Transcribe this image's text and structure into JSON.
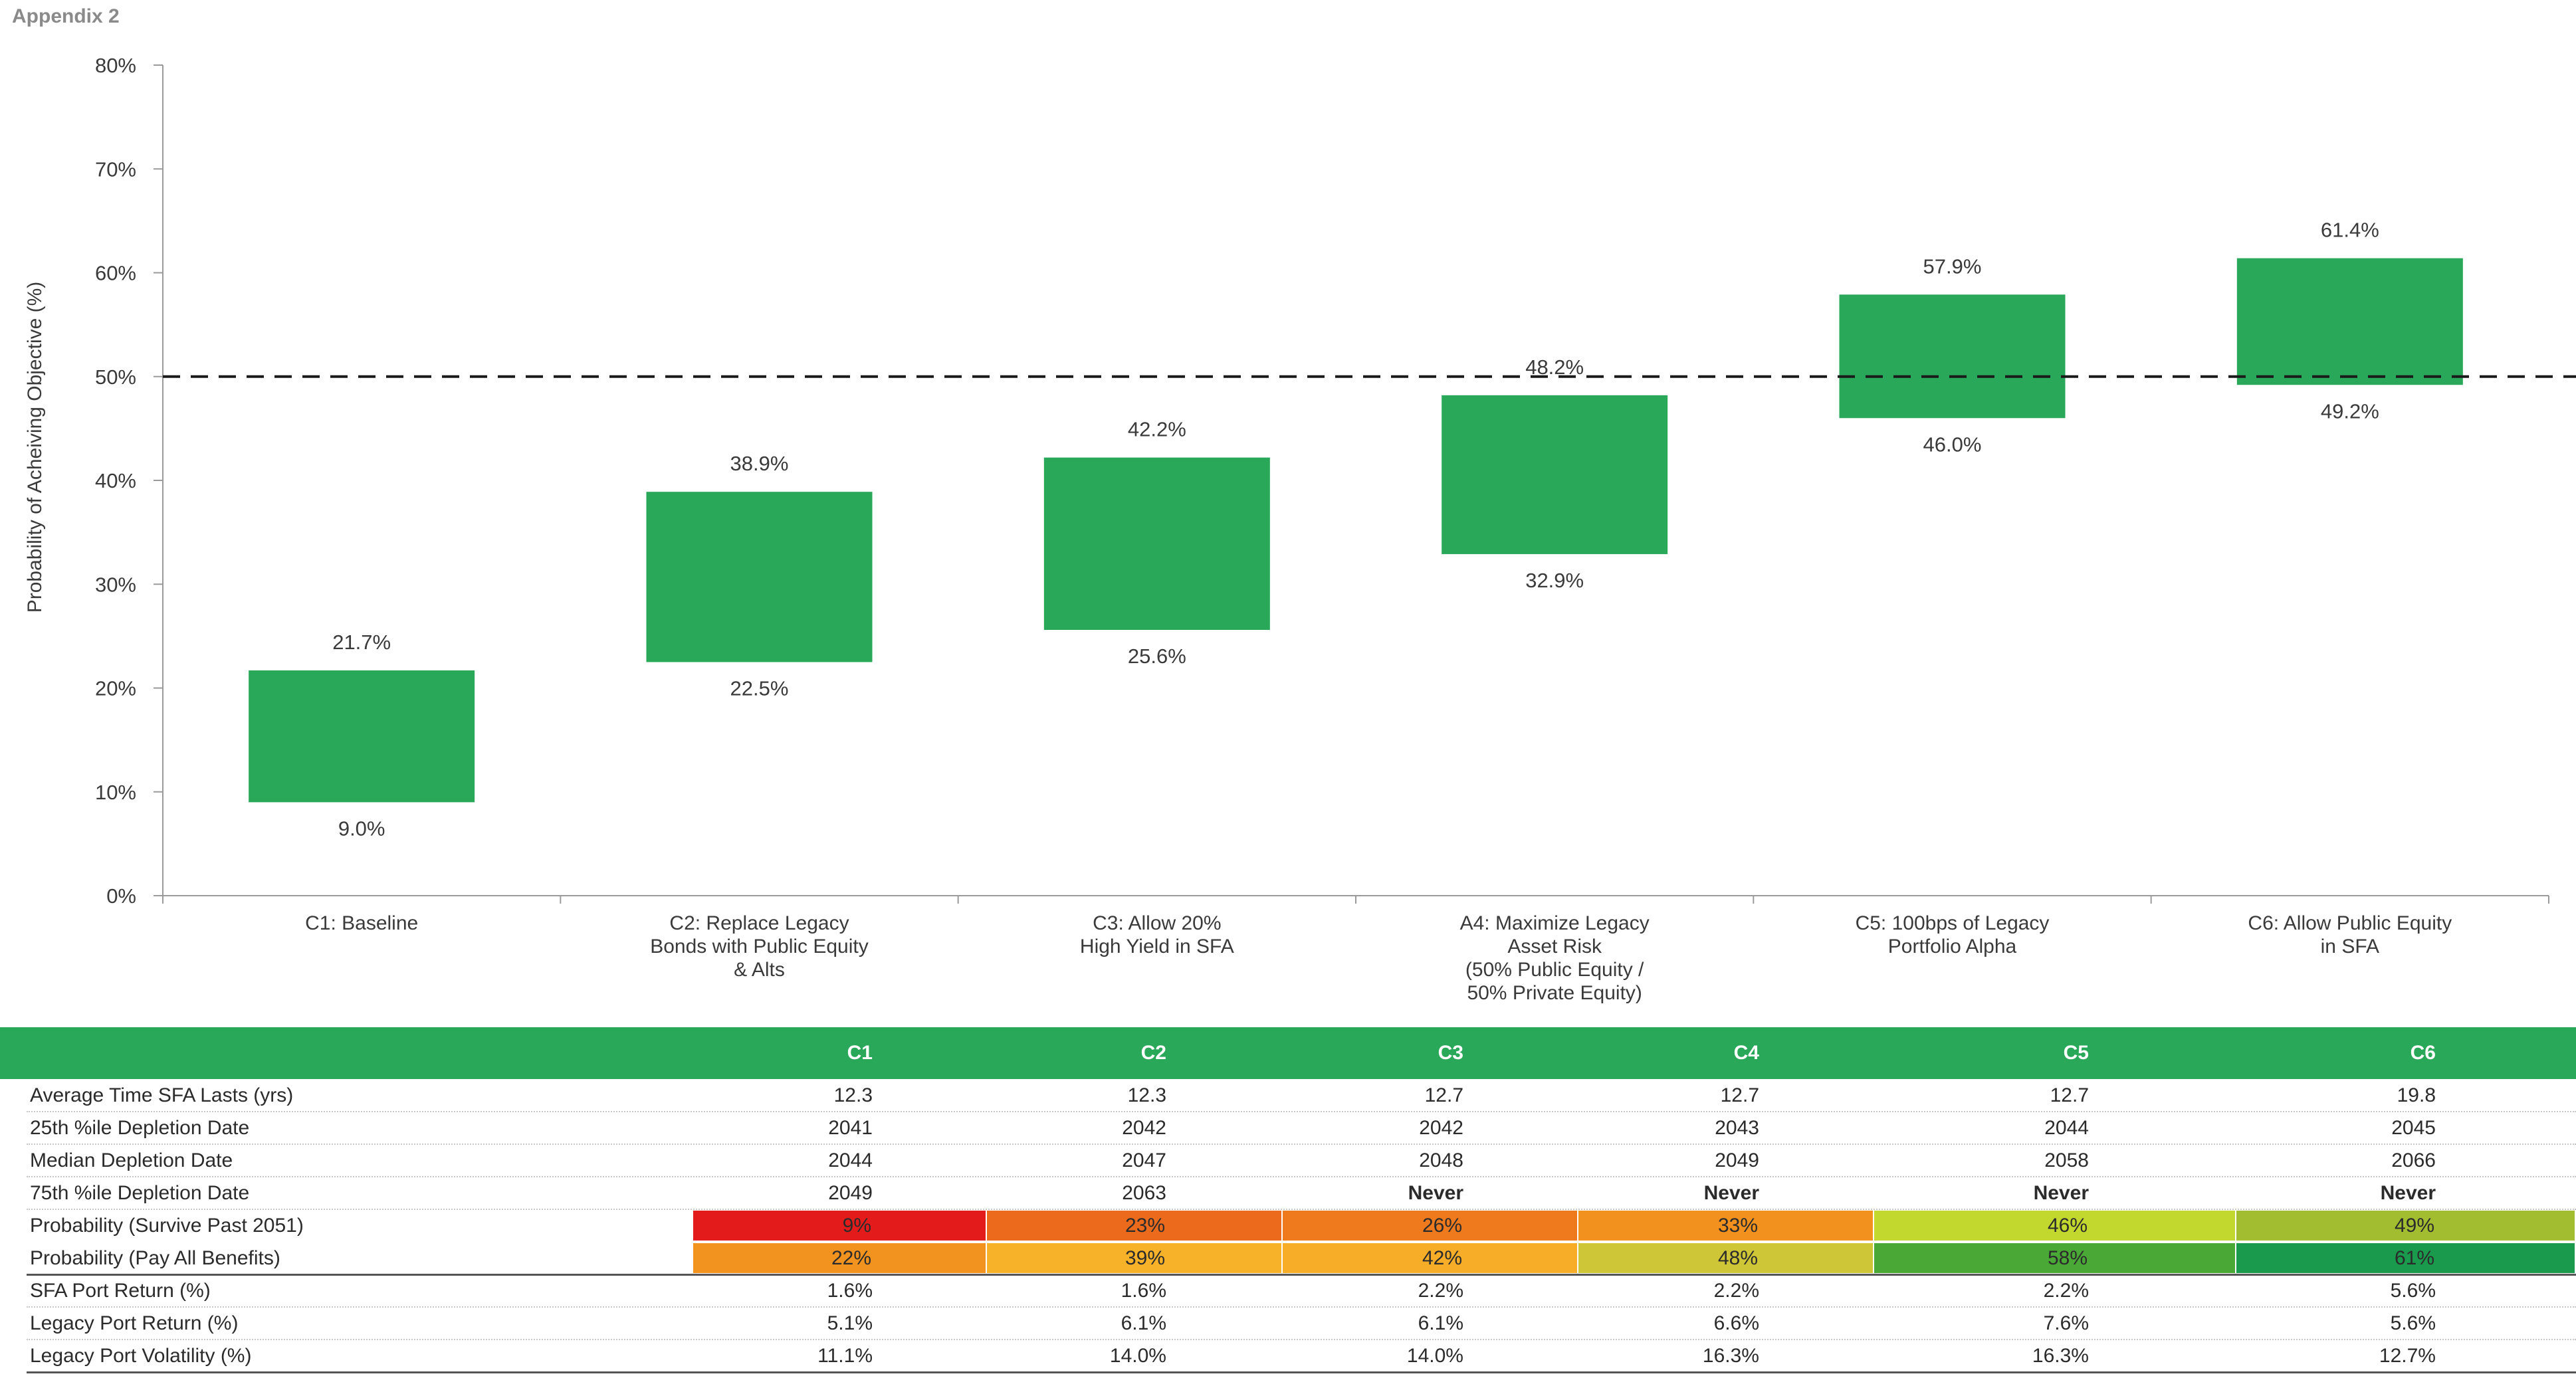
{
  "header": {
    "appendix_label": "Appendix 2"
  },
  "chart_data": {
    "type": "floating-bar",
    "ylabel": "Probability of Acheiving Objective (%)",
    "ylim": [
      0,
      80
    ],
    "y_ticks": [
      "0%",
      "10%",
      "20%",
      "30%",
      "40%",
      "50%",
      "60%",
      "70%",
      "80%"
    ],
    "reference_line": 50,
    "bar_color": "#2aa85a",
    "categories": [
      [
        "C1: Baseline"
      ],
      [
        "C2: Replace Legacy",
        "Bonds with Public Equity",
        "& Alts"
      ],
      [
        "C3: Allow 20%",
        "High Yield in SFA"
      ],
      [
        "A4: Maximize Legacy",
        "Asset Risk",
        "(50% Public Equity /",
        "50% Private Equity)"
      ],
      [
        "C5: 100bps of Legacy",
        "Portfolio Alpha"
      ],
      [
        "C6: Allow Public Equity",
        "in SFA"
      ]
    ],
    "low": [
      9.0,
      22.5,
      25.6,
      32.9,
      46.0,
      49.2
    ],
    "high": [
      21.7,
      38.9,
      42.2,
      48.2,
      57.9,
      61.4
    ],
    "low_labels": [
      "9.0%",
      "22.5%",
      "25.6%",
      "32.9%",
      "46.0%",
      "49.2%"
    ],
    "high_labels": [
      "21.7%",
      "38.9%",
      "42.2%",
      "48.2%",
      "57.9%",
      "61.4%"
    ]
  },
  "table": {
    "header_color": "#2aa85a",
    "columns": [
      "C1",
      "C2",
      "C3",
      "C4",
      "C5",
      "C6"
    ],
    "plain_rows_top": [
      {
        "label": "Average Time SFA Lasts (yrs)",
        "values": [
          "12.3",
          "12.3",
          "12.7",
          "12.7",
          "12.7",
          "19.8"
        ]
      },
      {
        "label": "25th %ile Depletion Date",
        "values": [
          "2041",
          "2042",
          "2042",
          "2043",
          "2044",
          "2045"
        ]
      },
      {
        "label": "Median Depletion Date",
        "values": [
          "2044",
          "2047",
          "2048",
          "2049",
          "2058",
          "2066"
        ]
      },
      {
        "label": "75th %ile Depletion Date",
        "values": [
          "2049",
          "2063",
          "Never",
          "Never",
          "Never",
          "Never"
        ]
      }
    ],
    "heat_rows": [
      {
        "label": "Probability (Survive Past 2051)",
        "values": [
          "9%",
          "23%",
          "26%",
          "33%",
          "46%",
          "49%"
        ],
        "colors": [
          "#e31b1b",
          "#ec6a1b",
          "#ee7a1d",
          "#f3911f",
          "#c2d82e",
          "#a2bd30"
        ]
      },
      {
        "label": "Probability (Pay All Benefits)",
        "values": [
          "22%",
          "39%",
          "42%",
          "48%",
          "58%",
          "61%"
        ],
        "colors": [
          "#f2921f",
          "#f7b229",
          "#f7ad28",
          "#cec537",
          "#4aa836",
          "#199a4c"
        ]
      }
    ],
    "plain_rows_bottom": [
      {
        "label": "SFA Port Return (%)",
        "values": [
          "1.6%",
          "1.6%",
          "2.2%",
          "2.2%",
          "2.2%",
          "5.6%"
        ]
      },
      {
        "label": "Legacy Port Return (%)",
        "values": [
          "5.1%",
          "6.1%",
          "6.1%",
          "6.6%",
          "7.6%",
          "5.6%"
        ]
      },
      {
        "label": "Legacy Port Volatility (%)",
        "values": [
          "11.1%",
          "14.0%",
          "14.0%",
          "16.3%",
          "16.3%",
          "12.7%"
        ]
      }
    ]
  }
}
